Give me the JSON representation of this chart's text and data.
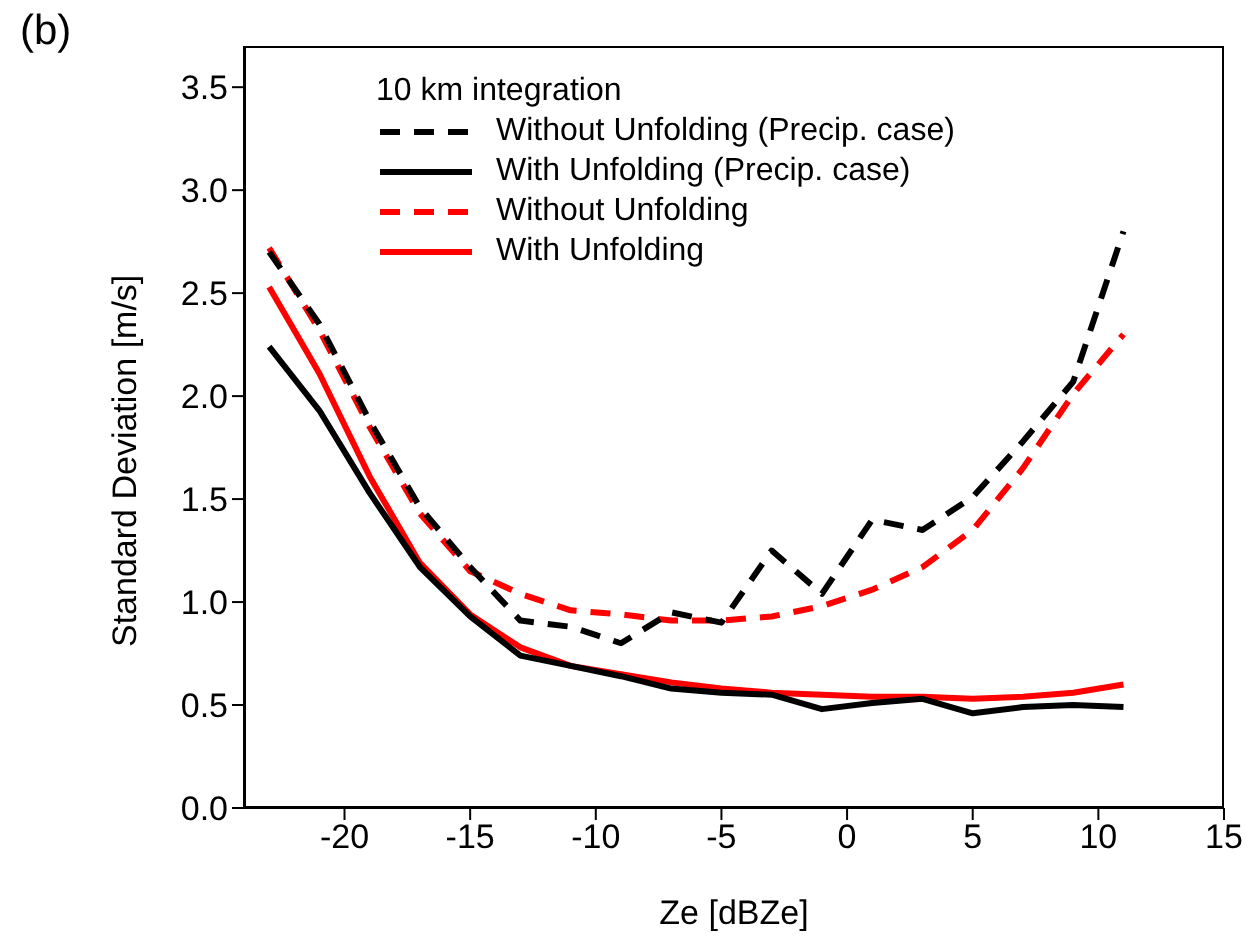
{
  "chart_data": {
    "type": "line",
    "xlabel": "Ze [dBZe]",
    "ylabel": "Standard Deviation [m/s]",
    "legend_title": "10 km integration",
    "annotations": [
      "(b)"
    ],
    "x": [
      -23,
      -21,
      -19,
      -17,
      -15,
      -13,
      -11,
      -9,
      -7,
      -5,
      -3,
      -1,
      1,
      3,
      5,
      7,
      9,
      11
    ],
    "xlim": [
      -24,
      15
    ],
    "xticks": [
      -20,
      -15,
      -10,
      -5,
      0,
      5,
      10,
      15
    ],
    "ylim": [
      0,
      3.7
    ],
    "yticks": [
      {
        "value": 0,
        "label": "0.0"
      },
      {
        "value": 0.5,
        "label": "0.5"
      },
      {
        "value": 1,
        "label": "1.0"
      },
      {
        "value": 1.5,
        "label": "1.5"
      },
      {
        "value": 2,
        "label": "2.0"
      },
      {
        "value": 2.5,
        "label": "2.5"
      },
      {
        "value": 3,
        "label": "3.0"
      },
      {
        "value": 3.5,
        "label": "3.5"
      }
    ],
    "grid": false,
    "legend": "top left",
    "marker": "none",
    "series": [
      {
        "name": "Without Unfolding (Precip. case)",
        "color": "#000000",
        "line_style": "dashed",
        "values": [
          2.7,
          2.35,
          1.88,
          1.46,
          1.17,
          0.91,
          0.88,
          0.8,
          0.95,
          0.9,
          1.25,
          1.04,
          1.4,
          1.35,
          1.51,
          1.78,
          2.07,
          2.8
        ]
      },
      {
        "name": "With Unfolding (Precip. case)",
        "color": "#000000",
        "line_style": "solid",
        "values": [
          2.24,
          1.93,
          1.53,
          1.17,
          0.93,
          0.74,
          0.69,
          0.64,
          0.58,
          0.56,
          0.55,
          0.48,
          0.51,
          0.53,
          0.46,
          0.49,
          0.5,
          0.49
        ]
      },
      {
        "name": "Without Unfolding",
        "color": "#ff0000",
        "line_style": "dashed",
        "values": [
          2.72,
          2.32,
          1.85,
          1.43,
          1.15,
          1.04,
          0.96,
          0.94,
          0.91,
          0.91,
          0.93,
          0.98,
          1.06,
          1.17,
          1.35,
          1.65,
          2.01,
          2.3
        ]
      },
      {
        "name": "With Unfolding",
        "color": "#ff0000",
        "line_style": "solid",
        "values": [
          2.53,
          2.11,
          1.61,
          1.19,
          0.94,
          0.78,
          0.69,
          0.65,
          0.61,
          0.58,
          0.56,
          0.55,
          0.54,
          0.54,
          0.53,
          0.54,
          0.56,
          0.6
        ]
      }
    ]
  }
}
